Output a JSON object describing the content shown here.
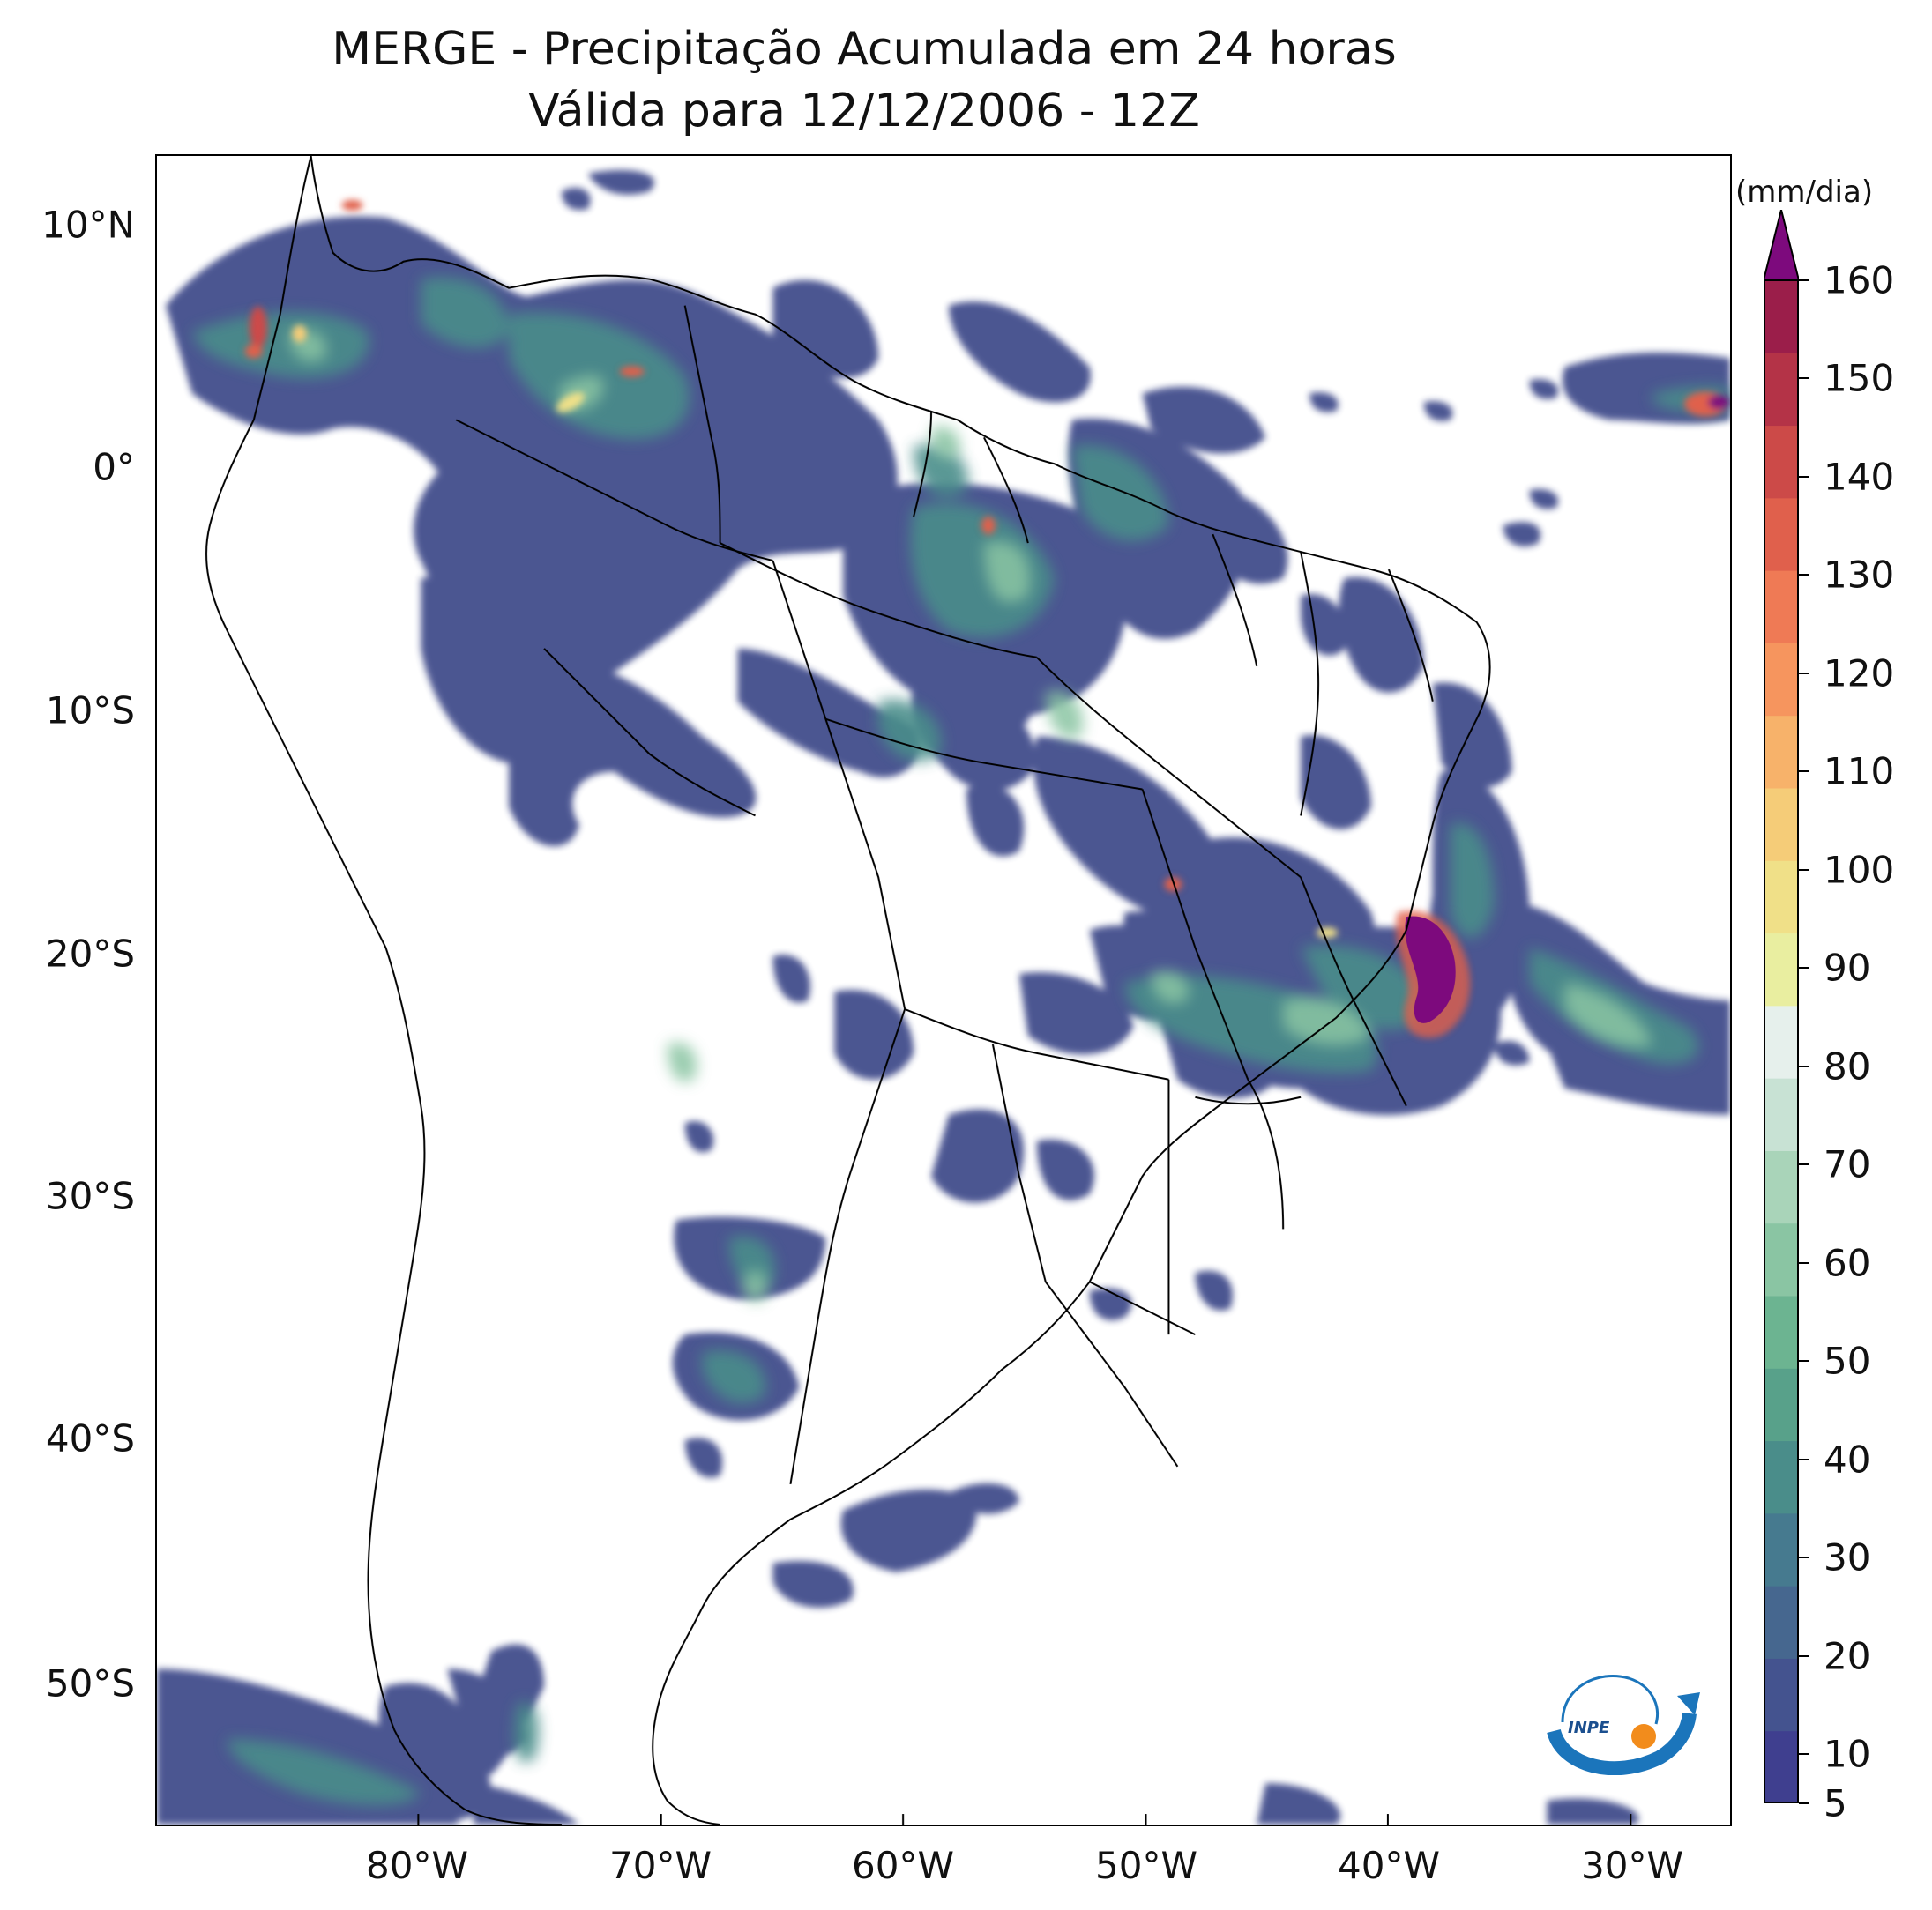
{
  "title": {
    "line1": "MERGE - Precipitação Acumulada em 24 horas",
    "line2": "Válida para 12/12/2006 - 12Z"
  },
  "axes": {
    "lat_labels": [
      "10°N",
      "0°",
      "10°S",
      "20°S",
      "30°S",
      "40°S",
      "50°S"
    ],
    "lat_values": [
      10,
      0,
      -10,
      -20,
      -30,
      -40,
      -50
    ],
    "lon_labels": [
      "80°W",
      "70°W",
      "60°W",
      "50°W",
      "40°W",
      "30°W"
    ],
    "lon_values": [
      -80,
      -70,
      -60,
      -50,
      -40,
      -30
    ],
    "lat_range": [
      -56,
      13
    ],
    "lon_range": [
      -90,
      -25
    ]
  },
  "colorbar": {
    "unit": "(mm/dia)",
    "min": 5,
    "max": 160,
    "tick_labels": [
      "5",
      "10",
      "20",
      "30",
      "40",
      "50",
      "60",
      "70",
      "80",
      "90",
      "100",
      "110",
      "120",
      "130",
      "140",
      "150",
      "160"
    ],
    "tick_values": [
      5,
      10,
      20,
      30,
      40,
      50,
      60,
      70,
      80,
      90,
      100,
      110,
      120,
      130,
      140,
      150,
      160
    ],
    "colors": [
      "#3f3f8f",
      "#44538f",
      "#46678f",
      "#467a8f",
      "#4a8d8a",
      "#58a18a",
      "#6cb491",
      "#8ac5a3",
      "#a9d4b9",
      "#c8e2d4",
      "#e6f0ec",
      "#e9eea0",
      "#f0e088",
      "#f5cc78",
      "#f7b26a",
      "#f6955e",
      "#ef7a55",
      "#e0604c",
      "#cc4a48",
      "#b43347",
      "#9b1e4a"
    ],
    "extend_color": "#7d0a7d"
  },
  "logo": {
    "text": "INPE"
  }
}
